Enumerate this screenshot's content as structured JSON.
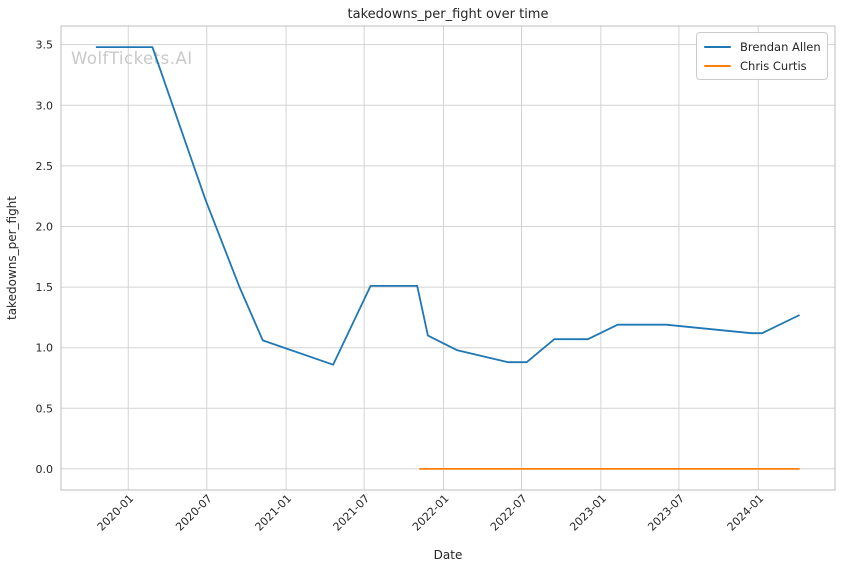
{
  "figure": {
    "watermark": "WolfTickets.AI"
  },
  "chart_data": {
    "type": "line",
    "title": "takedowns_per_fight over time",
    "xlabel": "Date",
    "ylabel": "takedowns_per_fight",
    "grid": true,
    "legend_position": "upper right",
    "xlim": [
      "2019-07-29",
      "2024-06-27"
    ],
    "ylim": [
      -0.174,
      3.654
    ],
    "x_ticks": [
      {
        "label": "2020-01",
        "date": "2020-01-01"
      },
      {
        "label": "2020-07",
        "date": "2020-07-01"
      },
      {
        "label": "2021-01",
        "date": "2021-01-01"
      },
      {
        "label": "2021-07",
        "date": "2021-07-01"
      },
      {
        "label": "2022-01",
        "date": "2022-01-01"
      },
      {
        "label": "2022-07",
        "date": "2022-07-01"
      },
      {
        "label": "2023-01",
        "date": "2023-01-01"
      },
      {
        "label": "2023-07",
        "date": "2023-07-01"
      },
      {
        "label": "2024-01",
        "date": "2024-01-01"
      }
    ],
    "y_ticks": [
      0.0,
      0.5,
      1.0,
      1.5,
      2.0,
      2.5,
      3.0,
      3.5
    ],
    "colors": {
      "grid": "#d4d4d4",
      "spine": "#bdbdbd",
      "text": "#262626",
      "watermark": "#c9c9c9"
    },
    "series": [
      {
        "name": "Brendan Allen",
        "color": "#1f77b4",
        "points": [
          [
            "2019-10-18",
            3.48
          ],
          [
            "2020-02-26",
            3.48
          ],
          [
            "2020-06-28",
            2.22
          ],
          [
            "2020-09-15",
            1.5
          ],
          [
            "2020-11-08",
            1.06
          ],
          [
            "2021-04-20",
            0.86
          ],
          [
            "2021-07-16",
            1.51
          ],
          [
            "2021-11-01",
            1.51
          ],
          [
            "2021-11-26",
            1.1
          ],
          [
            "2022-02-01",
            0.98
          ],
          [
            "2022-05-31",
            0.88
          ],
          [
            "2022-07-13",
            0.88
          ],
          [
            "2022-09-15",
            1.07
          ],
          [
            "2022-12-02",
            1.07
          ],
          [
            "2023-02-09",
            1.19
          ],
          [
            "2023-06-01",
            1.19
          ],
          [
            "2023-12-16",
            1.12
          ],
          [
            "2024-01-10",
            1.12
          ],
          [
            "2024-04-06",
            1.27
          ]
        ]
      },
      {
        "name": "Chris Curtis",
        "color": "#ff7f0e",
        "points": [
          [
            "2021-11-06",
            0.0
          ],
          [
            "2024-04-06",
            0.0
          ]
        ]
      }
    ]
  }
}
